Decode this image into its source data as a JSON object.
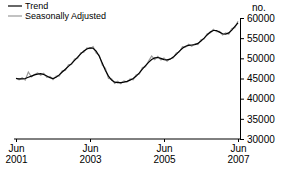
{
  "chart_data": {
    "type": "line",
    "ylabel": "no.",
    "categories": [
      "Jun 2001",
      null,
      null,
      null,
      null,
      null,
      null,
      null,
      null,
      null,
      null,
      null,
      null,
      null,
      null,
      null,
      null,
      null,
      null,
      null,
      null,
      null,
      null,
      null,
      "Jun 2003",
      null,
      null,
      null,
      null,
      null,
      null,
      null,
      null,
      null,
      null,
      null,
      null,
      null,
      null,
      null,
      null,
      null,
      null,
      null,
      null,
      null,
      null,
      null,
      "Jun 2005",
      null,
      null,
      null,
      null,
      null,
      null,
      null,
      null,
      null,
      null,
      null,
      null,
      null,
      null,
      null,
      null,
      null,
      null,
      null,
      null,
      null,
      null,
      null,
      "Jun 2007"
    ],
    "series": [
      {
        "name": "Trend",
        "color": "#000000",
        "values": [
          45000,
          44900,
          44900,
          45000,
          45300,
          45600,
          45900,
          46100,
          46200,
          46000,
          45600,
          45200,
          45000,
          45300,
          45900,
          46600,
          47300,
          48000,
          48700,
          49500,
          50300,
          51100,
          51800,
          52300,
          52600,
          52500,
          51800,
          50500,
          48800,
          47000,
          45600,
          44600,
          44100,
          44000,
          44000,
          44100,
          44300,
          44600,
          45000,
          45600,
          46400,
          47300,
          48200,
          49000,
          49700,
          50100,
          50200,
          50000,
          49700,
          49600,
          49800,
          50300,
          51000,
          51800,
          52500,
          53000,
          53200,
          53300,
          53400,
          53700,
          54300,
          55000,
          55800,
          56500,
          56900,
          56900,
          56500,
          56100,
          56000,
          56300,
          57000,
          57900,
          58800
        ]
      },
      {
        "name": "Seasonally Adjusted",
        "color": "#999999",
        "values": [
          45100,
          44700,
          45200,
          44600,
          46600,
          45400,
          46000,
          46400,
          45800,
          46300,
          45300,
          45500,
          44700,
          45600,
          45600,
          46900,
          47000,
          48400,
          48500,
          49800,
          50000,
          51400,
          51500,
          52600,
          52400,
          52900,
          51300,
          50800,
          48300,
          47500,
          45000,
          44900,
          43800,
          44300,
          43700,
          44400,
          44100,
          44900,
          44700,
          45900,
          46100,
          47700,
          47900,
          49300,
          50600,
          49700,
          50500,
          49600,
          50100,
          49300,
          49900,
          50100,
          51300,
          51600,
          52900,
          52800,
          53500,
          53000,
          53600,
          53400,
          54600,
          54800,
          56100,
          56300,
          57200,
          56600,
          56700,
          55800,
          56300,
          56000,
          57400,
          57600,
          59200
        ]
      }
    ],
    "ylim": [
      30000,
      60000
    ],
    "yticks": [
      30000,
      35000,
      40000,
      45000,
      50000,
      55000,
      60000
    ],
    "legend": "upper left",
    "grid": false
  }
}
